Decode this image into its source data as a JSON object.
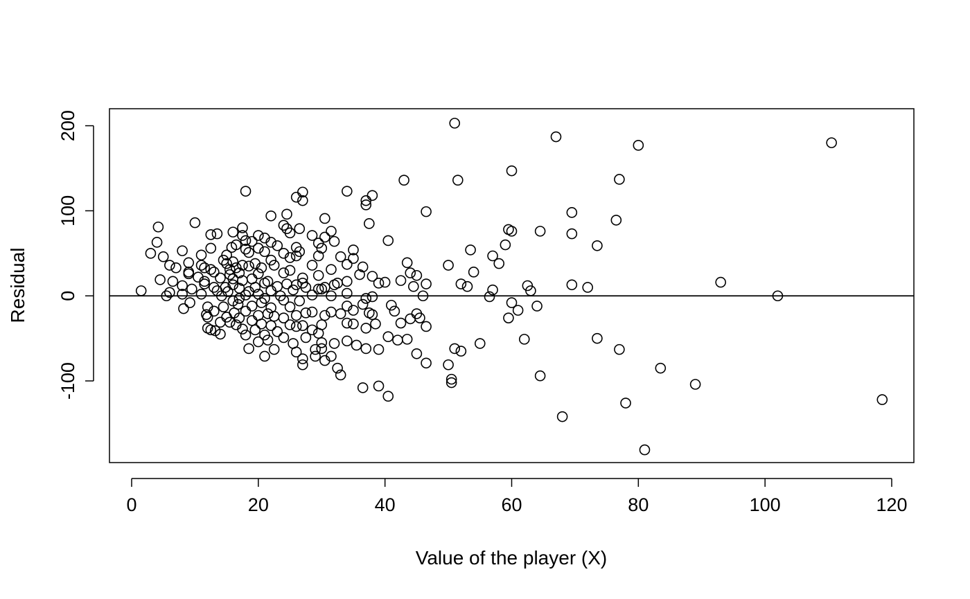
{
  "chart_data": {
    "type": "scatter",
    "title": "",
    "xlabel": "Value of the player (X)",
    "ylabel": "Residual",
    "xlim": [
      -3.5,
      123.5
    ],
    "ylim": [
      -196,
      220
    ],
    "x_ticks": [
      0,
      20,
      40,
      60,
      80,
      100,
      120
    ],
    "x_tick_labels": [
      "0",
      "20",
      "40",
      "60",
      "80",
      "100",
      "120"
    ],
    "y_ticks": [
      -100,
      0,
      100,
      200
    ],
    "y_tick_labels": [
      "-100",
      "0",
      "100",
      "200"
    ],
    "reference_line": {
      "y": 0
    },
    "grid": false,
    "marker": "open-circle",
    "points": [
      [
        1.5,
        6
      ],
      [
        3,
        50
      ],
      [
        4,
        63
      ],
      [
        4.2,
        81
      ],
      [
        4.5,
        19
      ],
      [
        5,
        46
      ],
      [
        5.5,
        0
      ],
      [
        6,
        36
      ],
      [
        6,
        4
      ],
      [
        6.5,
        17
      ],
      [
        7,
        33
      ],
      [
        8,
        53
      ],
      [
        8,
        12
      ],
      [
        8,
        2
      ],
      [
        8.2,
        -15
      ],
      [
        9,
        39
      ],
      [
        9,
        28
      ],
      [
        9,
        26
      ],
      [
        9.2,
        -8
      ],
      [
        9.5,
        8
      ],
      [
        10,
        86
      ],
      [
        10.5,
        22
      ],
      [
        11,
        2
      ],
      [
        11,
        48
      ],
      [
        11,
        36
      ],
      [
        11.5,
        17
      ],
      [
        11.5,
        14
      ],
      [
        11.5,
        33
      ],
      [
        11.8,
        -22
      ],
      [
        12,
        -38
      ],
      [
        12,
        -25
      ],
      [
        12,
        -13
      ],
      [
        12.5,
        72
      ],
      [
        12.5,
        56
      ],
      [
        12.5,
        31
      ],
      [
        12.5,
        -40
      ],
      [
        13,
        28
      ],
      [
        13,
        10
      ],
      [
        13,
        -18
      ],
      [
        13.2,
        -41
      ],
      [
        13.5,
        73
      ],
      [
        13.5,
        6
      ],
      [
        14,
        21
      ],
      [
        14,
        -31
      ],
      [
        14,
        -45
      ],
      [
        14.2,
        0
      ],
      [
        14.5,
        42
      ],
      [
        14.5,
        -13
      ],
      [
        14.8,
        10
      ],
      [
        15,
        48
      ],
      [
        15,
        38
      ],
      [
        15,
        -25
      ],
      [
        15.2,
        5
      ],
      [
        15.5,
        31
      ],
      [
        15.5,
        25
      ],
      [
        15.5,
        -31
      ],
      [
        15.8,
        57
      ],
      [
        16,
        75
      ],
      [
        16,
        40
      ],
      [
        16,
        20
      ],
      [
        16,
        13
      ],
      [
        16,
        -6
      ],
      [
        16.2,
        -20
      ],
      [
        16.5,
        60
      ],
      [
        16.5,
        33
      ],
      [
        16.5,
        -34
      ],
      [
        16.8,
        -10
      ],
      [
        17,
        27
      ],
      [
        17,
        9
      ],
      [
        17,
        -3
      ],
      [
        17,
        -26
      ],
      [
        17.5,
        80
      ],
      [
        17.5,
        71
      ],
      [
        17.5,
        36
      ],
      [
        17.5,
        18
      ],
      [
        17.5,
        -39
      ],
      [
        18,
        123
      ],
      [
        18,
        65
      ],
      [
        18,
        55
      ],
      [
        18,
        1
      ],
      [
        18,
        -18
      ],
      [
        18,
        -46
      ],
      [
        18.5,
        51
      ],
      [
        18.5,
        35
      ],
      [
        18.5,
        5
      ],
      [
        18.5,
        -62
      ],
      [
        19,
        64
      ],
      [
        19,
        20
      ],
      [
        19,
        -12
      ],
      [
        19,
        -29
      ],
      [
        19.5,
        38
      ],
      [
        19.5,
        10
      ],
      [
        19.5,
        -40
      ],
      [
        20,
        71
      ],
      [
        20,
        56
      ],
      [
        20,
        26
      ],
      [
        20,
        2
      ],
      [
        20,
        -23
      ],
      [
        20,
        -54
      ],
      [
        20.5,
        33
      ],
      [
        20.5,
        -8
      ],
      [
        20.5,
        -33
      ],
      [
        21,
        68
      ],
      [
        21,
        52
      ],
      [
        21,
        15
      ],
      [
        21,
        -3
      ],
      [
        21,
        -46
      ],
      [
        21,
        -71
      ],
      [
        21.5,
        17
      ],
      [
        21.5,
        -21
      ],
      [
        21.5,
        -52
      ],
      [
        22,
        94
      ],
      [
        22,
        63
      ],
      [
        22,
        42
      ],
      [
        22,
        6
      ],
      [
        22,
        -14
      ],
      [
        22,
        -35
      ],
      [
        22.5,
        36
      ],
      [
        22.5,
        -24
      ],
      [
        22.5,
        -63
      ],
      [
        23,
        59
      ],
      [
        23,
        11
      ],
      [
        23,
        -42
      ],
      [
        23.5,
        0
      ],
      [
        24,
        83
      ],
      [
        24,
        50
      ],
      [
        24,
        27
      ],
      [
        24,
        -5
      ],
      [
        24,
        -26
      ],
      [
        24,
        -49
      ],
      [
        24.5,
        96
      ],
      [
        24.5,
        79
      ],
      [
        24.5,
        14
      ],
      [
        25,
        74
      ],
      [
        25,
        45
      ],
      [
        25,
        30
      ],
      [
        25,
        -13
      ],
      [
        25,
        -34
      ],
      [
        25.5,
        7
      ],
      [
        25.5,
        -56
      ],
      [
        26,
        116
      ],
      [
        26,
        57
      ],
      [
        26,
        47
      ],
      [
        26,
        13
      ],
      [
        26,
        -23
      ],
      [
        26,
        -36
      ],
      [
        26,
        -66
      ],
      [
        26.5,
        79
      ],
      [
        26.5,
        52
      ],
      [
        26.5,
        -6
      ],
      [
        27,
        122
      ],
      [
        27,
        112
      ],
      [
        27,
        21
      ],
      [
        27,
        15
      ],
      [
        27,
        -35
      ],
      [
        27,
        -74
      ],
      [
        27,
        -81
      ],
      [
        27.5,
        10
      ],
      [
        27.5,
        -20
      ],
      [
        27.5,
        -49
      ],
      [
        28.5,
        71
      ],
      [
        28.5,
        36
      ],
      [
        28.5,
        1
      ],
      [
        28.5,
        -19
      ],
      [
        28.5,
        -40
      ],
      [
        29,
        -63
      ],
      [
        29,
        -71
      ],
      [
        29.5,
        62
      ],
      [
        29.5,
        47
      ],
      [
        29.5,
        24
      ],
      [
        29.5,
        8
      ],
      [
        29.5,
        -44
      ],
      [
        30,
        56
      ],
      [
        30,
        8
      ],
      [
        30,
        -34
      ],
      [
        30,
        -55
      ],
      [
        30,
        -62
      ],
      [
        30.5,
        91
      ],
      [
        30.5,
        69
      ],
      [
        30.5,
        10
      ],
      [
        30.5,
        -23
      ],
      [
        30.5,
        -76
      ],
      [
        31.5,
        76
      ],
      [
        31.5,
        31
      ],
      [
        31.5,
        0
      ],
      [
        31.5,
        -19
      ],
      [
        31.5,
        -71
      ],
      [
        32,
        64
      ],
      [
        32,
        13
      ],
      [
        32,
        -56
      ],
      [
        32.5,
        15
      ],
      [
        32.5,
        -85
      ],
      [
        33,
        46
      ],
      [
        33,
        -21
      ],
      [
        33,
        -93
      ],
      [
        34,
        123
      ],
      [
        34,
        37
      ],
      [
        34,
        17
      ],
      [
        34,
        3
      ],
      [
        34,
        -12
      ],
      [
        34,
        -32
      ],
      [
        34,
        -53
      ],
      [
        35,
        54
      ],
      [
        35,
        44
      ],
      [
        35,
        -17
      ],
      [
        35,
        -33
      ],
      [
        35.5,
        -58
      ],
      [
        36,
        25
      ],
      [
        36.5,
        34
      ],
      [
        36.5,
        -10
      ],
      [
        36.5,
        -108
      ],
      [
        37,
        112
      ],
      [
        37,
        107
      ],
      [
        37,
        -3
      ],
      [
        37,
        -38
      ],
      [
        37,
        -62
      ],
      [
        37.5,
        85
      ],
      [
        37.5,
        -20
      ],
      [
        38,
        118
      ],
      [
        38,
        23
      ],
      [
        38,
        -1
      ],
      [
        38,
        -22
      ],
      [
        38.5,
        -33
      ],
      [
        39,
        15
      ],
      [
        39,
        -63
      ],
      [
        39,
        -106
      ],
      [
        40,
        16
      ],
      [
        40.5,
        65
      ],
      [
        40.5,
        -48
      ],
      [
        40.5,
        -118
      ],
      [
        41,
        -11
      ],
      [
        41.5,
        -18
      ],
      [
        42,
        -52
      ],
      [
        42.5,
        18
      ],
      [
        42.5,
        -32
      ],
      [
        43,
        136
      ],
      [
        43.5,
        39
      ],
      [
        43.5,
        -51
      ],
      [
        44,
        27
      ],
      [
        44,
        -27
      ],
      [
        44.5,
        11
      ],
      [
        45,
        24
      ],
      [
        45,
        -21
      ],
      [
        45,
        -68
      ],
      [
        45.5,
        -26
      ],
      [
        46,
        0
      ],
      [
        46.5,
        99
      ],
      [
        46.5,
        14
      ],
      [
        46.5,
        -36
      ],
      [
        46.5,
        -79
      ],
      [
        50,
        36
      ],
      [
        50,
        -81
      ],
      [
        50.5,
        -98
      ],
      [
        50.5,
        -102
      ],
      [
        51,
        203
      ],
      [
        51,
        -62
      ],
      [
        51.5,
        136
      ],
      [
        52,
        14
      ],
      [
        52,
        -65
      ],
      [
        53,
        11
      ],
      [
        53.5,
        54
      ],
      [
        54,
        28
      ],
      [
        55,
        -56
      ],
      [
        56.5,
        -1
      ],
      [
        57,
        47
      ],
      [
        57,
        7
      ],
      [
        58,
        38
      ],
      [
        59,
        60
      ],
      [
        59.5,
        78
      ],
      [
        59.5,
        -26
      ],
      [
        60,
        147
      ],
      [
        60,
        76
      ],
      [
        60,
        -8
      ],
      [
        61,
        -17
      ],
      [
        62,
        -51
      ],
      [
        62.5,
        12
      ],
      [
        63,
        6
      ],
      [
        64,
        -12
      ],
      [
        64.5,
        76
      ],
      [
        64.5,
        -94
      ],
      [
        67,
        187
      ],
      [
        68,
        -142
      ],
      [
        69.5,
        98
      ],
      [
        69.5,
        73
      ],
      [
        69.5,
        13
      ],
      [
        72,
        10
      ],
      [
        73.5,
        59
      ],
      [
        73.5,
        -50
      ],
      [
        76.5,
        89
      ],
      [
        77,
        137
      ],
      [
        77,
        -63
      ],
      [
        78,
        -126
      ],
      [
        80,
        177
      ],
      [
        81,
        -181
      ],
      [
        83.5,
        -85
      ],
      [
        89,
        -104
      ],
      [
        93,
        16
      ],
      [
        102,
        0
      ],
      [
        110.5,
        180
      ],
      [
        118.5,
        -122
      ]
    ]
  }
}
